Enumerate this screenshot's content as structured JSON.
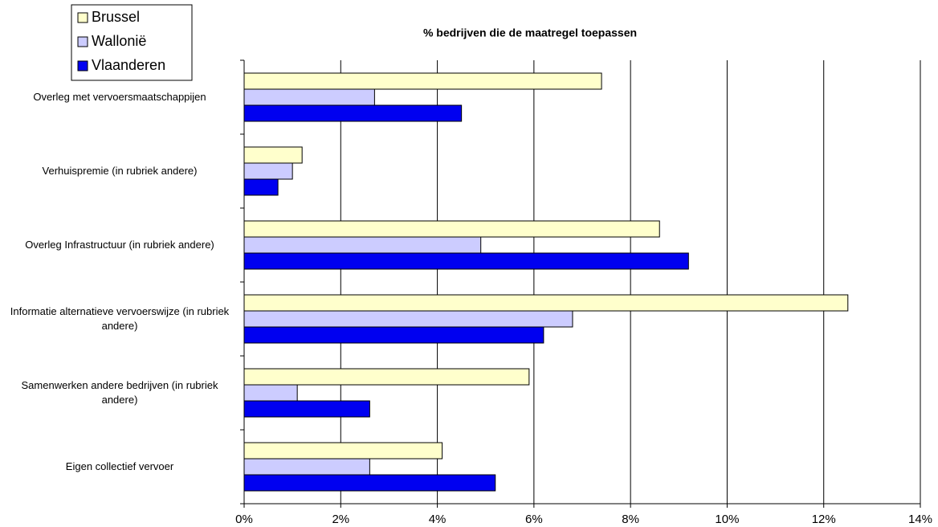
{
  "chart_data": {
    "type": "bar",
    "orientation": "horizontal",
    "title": "% bedrijven die de maatregel toepassen",
    "categories": [
      "Overleg met vervoersmaatschappijen",
      "Verhuispremie (in rubriek andere)",
      "Overleg Infrastructuur (in rubriek andere)",
      "Informatie alternatieve vervoerswijze (in rubriek andere)",
      "Samenwerken andere bedrijven (in rubriek andere)",
      "Eigen collectief vervoer"
    ],
    "series": [
      {
        "name": "Brussel",
        "color": "#ffffcc",
        "values": [
          7.4,
          1.2,
          8.6,
          12.5,
          5.9,
          4.1
        ]
      },
      {
        "name": "Wallonië",
        "color": "#ccccff",
        "values": [
          2.7,
          1.0,
          4.9,
          6.8,
          1.1,
          2.6
        ]
      },
      {
        "name": "Vlaanderen",
        "color": "#0000f0",
        "values": [
          4.5,
          0.7,
          9.2,
          6.2,
          2.6,
          5.2
        ]
      }
    ],
    "xlim": [
      0,
      14
    ],
    "xticks": [
      {
        "value": 0,
        "label": "0%"
      },
      {
        "value": 2,
        "label": "2%"
      },
      {
        "value": 4,
        "label": "4%"
      },
      {
        "value": 6,
        "label": "6%"
      },
      {
        "value": 8,
        "label": "8%"
      },
      {
        "value": 10,
        "label": "10%"
      },
      {
        "value": 12,
        "label": "12%"
      },
      {
        "value": 14,
        "label": "14%"
      }
    ],
    "grid": true,
    "legend": "top-left"
  }
}
